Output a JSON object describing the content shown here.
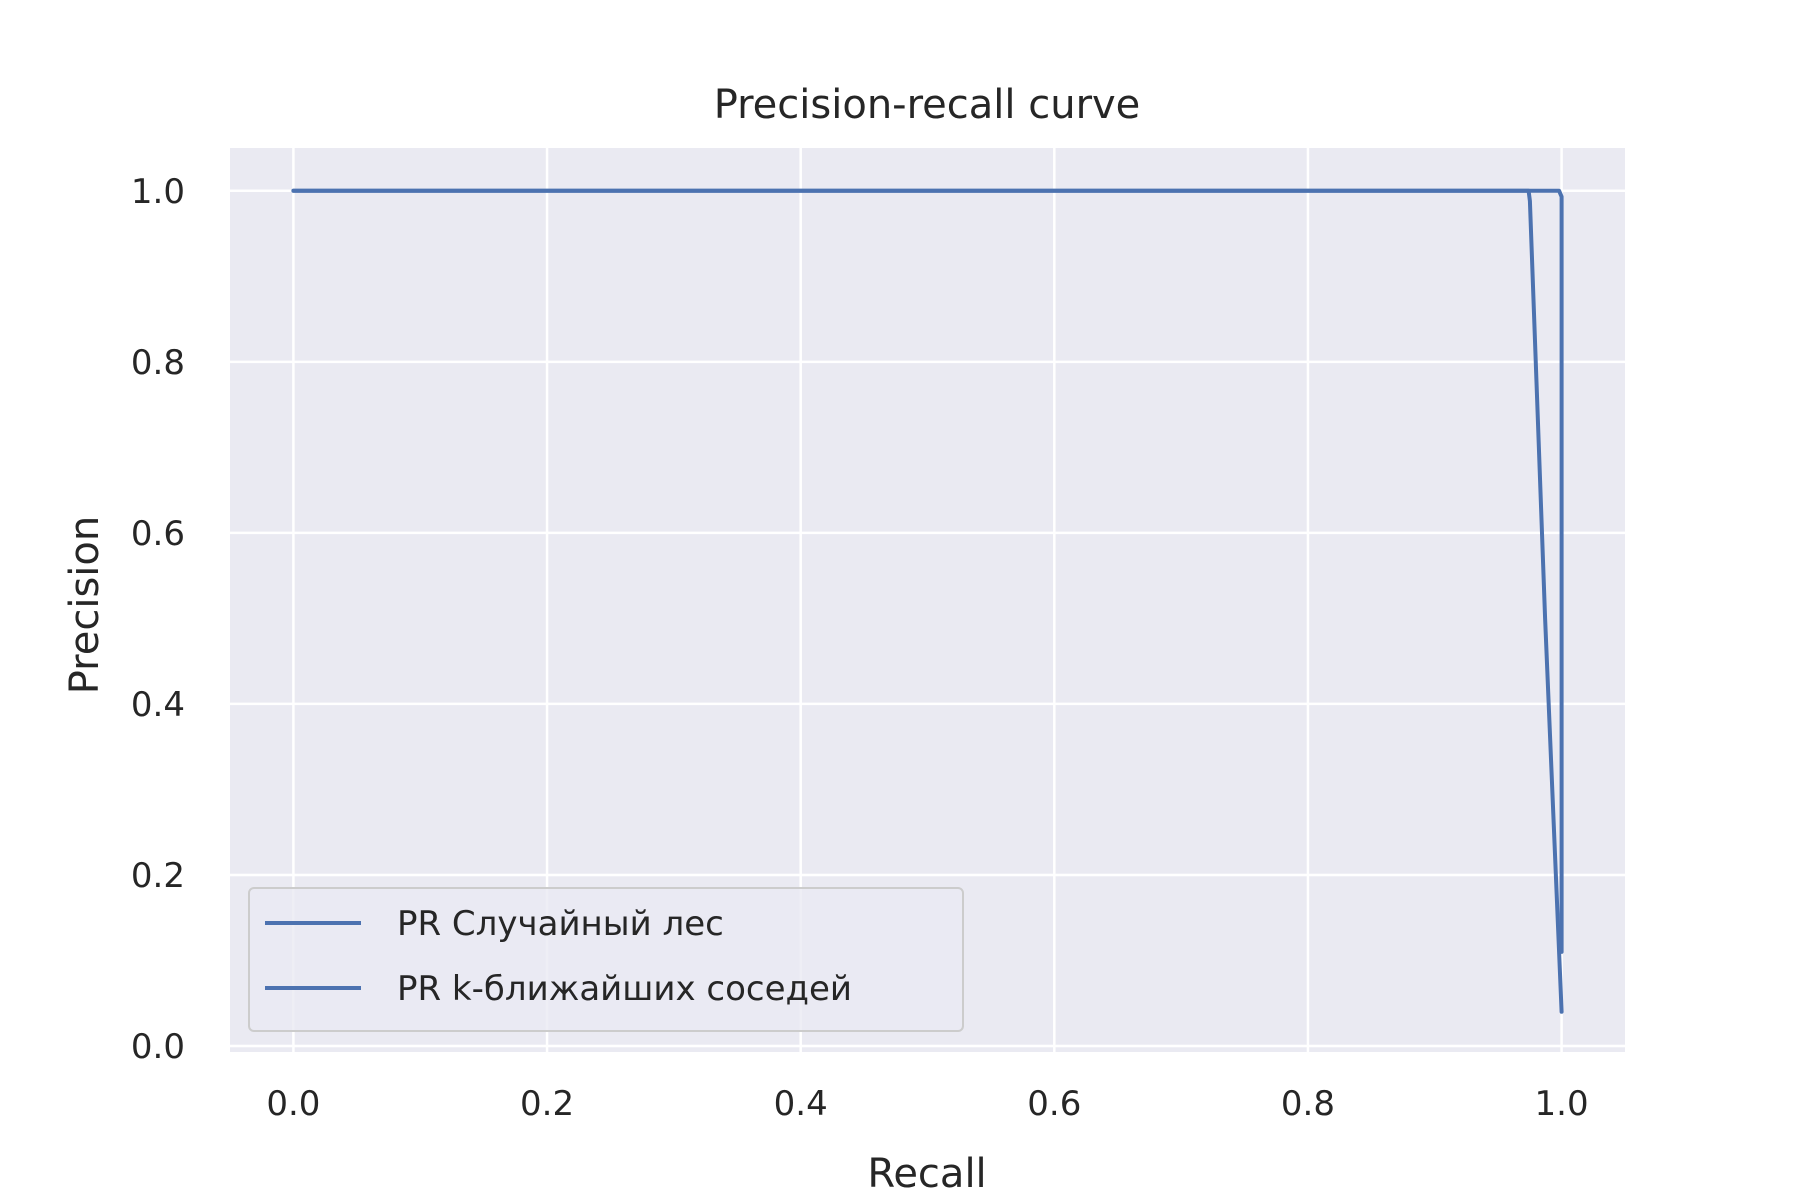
{
  "chart_data": {
    "type": "line",
    "title": "Precision-recall curve",
    "xlabel": "Recall",
    "ylabel": "Precision",
    "xlim": [
      -0.05,
      1.05
    ],
    "ylim": [
      -0.007,
      1.05
    ],
    "xticks": [
      0.0,
      0.2,
      0.4,
      0.6,
      0.8,
      1.0
    ],
    "yticks": [
      0.0,
      0.2,
      0.4,
      0.6,
      0.8,
      1.0
    ],
    "xtick_labels": [
      "0.0",
      "0.2",
      "0.4",
      "0.6",
      "0.8",
      "1.0"
    ],
    "ytick_labels": [
      "0.0",
      "0.2",
      "0.4",
      "0.6",
      "0.8",
      "1.0"
    ],
    "grid": true,
    "legend_position": "lower-left",
    "background_color": "#EAEAF2",
    "grid_color": "#FFFFFF",
    "series": [
      {
        "name": "PR Случайный лес",
        "color": "#4C72B0",
        "x": [
          0.0,
          0.5,
          0.998,
          1.0,
          1.0,
          1.0
        ],
        "y": [
          1.0,
          1.0,
          1.0,
          0.993,
          0.5,
          0.11
        ]
      },
      {
        "name": "PR k-ближайших соседей",
        "color": "#4C72B0",
        "x": [
          0.0,
          0.5,
          0.974,
          0.975,
          0.987,
          1.0
        ],
        "y": [
          1.0,
          1.0,
          1.0,
          0.988,
          0.5,
          0.04
        ]
      }
    ]
  }
}
